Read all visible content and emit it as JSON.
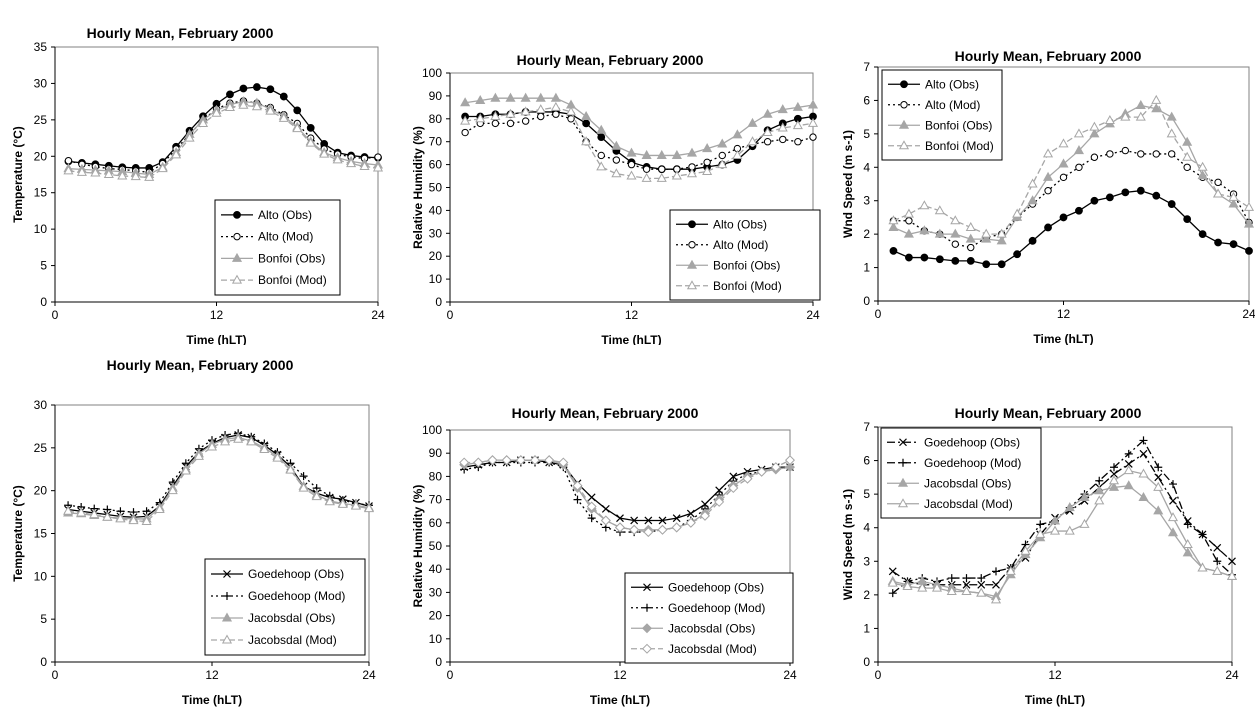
{
  "chart_data": [
    {
      "type": "line",
      "title": "Hourly Mean, February 2000",
      "xlabel": "Time (hLT)",
      "ylabel": "Temperature (°C)",
      "xlim": [
        0,
        24
      ],
      "xticks": [
        0,
        12,
        24
      ],
      "ylim": [
        0,
        35
      ],
      "yticks": [
        0,
        5,
        10,
        15,
        20,
        25,
        30,
        35
      ],
      "legend": "bottom-right",
      "x": [
        1,
        2,
        3,
        4,
        5,
        6,
        7,
        8,
        9,
        10,
        11,
        12,
        13,
        14,
        15,
        16,
        17,
        18,
        19,
        20,
        21,
        22,
        23,
        24
      ],
      "series": [
        {
          "name": "Alto (Obs)",
          "color": "#000000",
          "marker": "filled-circle",
          "dash": "solid",
          "values": [
            19.3,
            19.1,
            18.9,
            18.7,
            18.5,
            18.4,
            18.4,
            19.2,
            21.3,
            23.5,
            25.5,
            27.2,
            28.5,
            29.3,
            29.5,
            29.2,
            28.2,
            26.3,
            23.9,
            21.7,
            20.5,
            20.1,
            19.9,
            19.8
          ]
        },
        {
          "name": "Alto (Mod)",
          "color": "#000000",
          "marker": "open-circle",
          "dash": "dotted",
          "values": [
            19.4,
            18.9,
            18.6,
            18.3,
            18.2,
            18.0,
            17.8,
            19.0,
            21.0,
            23.0,
            25.0,
            26.5,
            27.3,
            27.6,
            27.3,
            26.7,
            25.7,
            24.5,
            22.5,
            21.0,
            20.3,
            19.9,
            19.7,
            19.9
          ]
        },
        {
          "name": "Bonfoi (Obs)",
          "color": "#a6a6a6",
          "marker": "filled-triangle",
          "dash": "solid",
          "values": [
            18.3,
            18.2,
            18.1,
            18.0,
            17.9,
            17.7,
            17.5,
            18.5,
            20.5,
            23.0,
            25.0,
            26.3,
            27.1,
            27.5,
            27.3,
            26.5,
            25.5,
            24.0,
            22.0,
            20.5,
            19.8,
            19.3,
            19.0,
            18.8
          ]
        },
        {
          "name": "Bonfoi (Mod)",
          "color": "#a6a6a6",
          "marker": "open-triangle",
          "dash": "dashed",
          "values": [
            18.0,
            17.8,
            17.7,
            17.5,
            17.3,
            17.2,
            17.1,
            18.3,
            20.2,
            22.5,
            24.5,
            25.9,
            26.7,
            27.0,
            26.8,
            26.2,
            25.2,
            23.8,
            21.8,
            20.3,
            19.5,
            19.0,
            18.6,
            18.4
          ]
        }
      ]
    },
    {
      "type": "line",
      "title": "Hourly Mean, February 2000",
      "xlabel": "Time (hLT)",
      "ylabel": "Relative Humidity (%)",
      "xlim": [
        0,
        24
      ],
      "xticks": [
        0,
        12,
        24
      ],
      "ylim": [
        0,
        100
      ],
      "yticks": [
        0,
        10,
        20,
        30,
        40,
        50,
        60,
        70,
        80,
        90,
        100
      ],
      "legend": "bottom-right",
      "x": [
        1,
        2,
        3,
        4,
        5,
        6,
        7,
        8,
        9,
        10,
        11,
        12,
        13,
        14,
        15,
        16,
        17,
        18,
        19,
        20,
        21,
        22,
        23,
        24
      ],
      "series": [
        {
          "name": "Alto (Obs)",
          "color": "#000000",
          "marker": "filled-circle",
          "dash": "solid",
          "values": [
            81,
            81,
            82,
            82,
            83,
            83,
            83,
            82,
            78,
            72,
            66,
            61,
            59,
            58,
            58,
            58,
            59,
            60,
            62,
            68,
            75,
            78,
            80,
            81
          ]
        },
        {
          "name": "Alto (Mod)",
          "color": "#000000",
          "marker": "open-circle",
          "dash": "dotted",
          "values": [
            74,
            78,
            78,
            78,
            79,
            81,
            82,
            80,
            70,
            64,
            62,
            60,
            58,
            58,
            58,
            59,
            61,
            64,
            67,
            69,
            70,
            71,
            70,
            72
          ]
        },
        {
          "name": "Bonfoi (Obs)",
          "color": "#a6a6a6",
          "marker": "filled-triangle",
          "dash": "solid",
          "values": [
            87,
            88,
            89,
            89,
            89,
            89,
            89,
            86,
            81,
            75,
            68,
            65,
            64,
            64,
            64,
            65,
            67,
            69,
            73,
            78,
            82,
            84,
            85,
            86
          ]
        },
        {
          "name": "Bonfoi (Mod)",
          "color": "#a6a6a6",
          "marker": "open-triangle",
          "dash": "dashed",
          "values": [
            79,
            80,
            81,
            82,
            83,
            84,
            85,
            83,
            70,
            59,
            56,
            55,
            54,
            54,
            55,
            56,
            57,
            60,
            64,
            70,
            74,
            76,
            77,
            78
          ]
        }
      ]
    },
    {
      "type": "line",
      "title": "Hourly Mean, February 2000",
      "xlabel": "Time (hLT)",
      "ylabel": "Wnd Speed (m s-1)",
      "xlim": [
        0,
        24
      ],
      "xticks": [
        0,
        12,
        24
      ],
      "ylim": [
        0,
        7
      ],
      "yticks": [
        0,
        1,
        2,
        3,
        4,
        5,
        6,
        7
      ],
      "legend": "top-left",
      "x": [
        1,
        2,
        3,
        4,
        5,
        6,
        7,
        8,
        9,
        10,
        11,
        12,
        13,
        14,
        15,
        16,
        17,
        18,
        19,
        20,
        21,
        22,
        23,
        24
      ],
      "series": [
        {
          "name": "Alto (Obs)",
          "color": "#000000",
          "marker": "filled-circle",
          "dash": "solid",
          "values": [
            1.5,
            1.3,
            1.3,
            1.25,
            1.2,
            1.2,
            1.1,
            1.1,
            1.4,
            1.8,
            2.2,
            2.5,
            2.7,
            3.0,
            3.1,
            3.25,
            3.3,
            3.15,
            2.9,
            2.45,
            2.0,
            1.75,
            1.7,
            1.5
          ]
        },
        {
          "name": "Alto (Mod)",
          "color": "#000000",
          "marker": "open-circle",
          "dash": "dotted",
          "values": [
            2.4,
            2.4,
            2.1,
            2.0,
            1.7,
            1.6,
            1.9,
            2.0,
            2.5,
            2.9,
            3.3,
            3.7,
            4.0,
            4.3,
            4.4,
            4.5,
            4.4,
            4.4,
            4.4,
            4.0,
            3.7,
            3.55,
            3.2,
            2.35
          ]
        },
        {
          "name": "Bonfoi (Obs)",
          "color": "#a6a6a6",
          "marker": "filled-triangle",
          "dash": "solid",
          "values": [
            2.2,
            2.0,
            2.1,
            2.0,
            2.0,
            1.85,
            1.85,
            1.8,
            2.5,
            3.0,
            3.7,
            4.1,
            4.5,
            5.0,
            5.3,
            5.6,
            5.85,
            5.75,
            5.5,
            4.75,
            3.75,
            3.2,
            2.9,
            2.3
          ]
        },
        {
          "name": "Bonfoi (Mod)",
          "color": "#a6a6a6",
          "marker": "open-triangle",
          "dash": "dashed",
          "values": [
            2.4,
            2.6,
            2.85,
            2.7,
            2.4,
            2.2,
            2.0,
            2.0,
            2.6,
            3.5,
            4.4,
            4.7,
            5.0,
            5.2,
            5.4,
            5.5,
            5.5,
            6.0,
            5.0,
            4.3,
            4.0,
            3.2,
            3.1,
            2.8
          ]
        }
      ]
    },
    {
      "type": "line",
      "title": "Hourly Mean, February 2000",
      "xlabel": "Time (hLT)",
      "ylabel": "Temperature (°C)",
      "xlim": [
        0,
        24
      ],
      "xticks": [
        0,
        12,
        24
      ],
      "ylim": [
        0,
        30
      ],
      "yticks": [
        0,
        5,
        10,
        15,
        20,
        25,
        30
      ],
      "legend": "bottom-right",
      "x": [
        1,
        2,
        3,
        4,
        5,
        6,
        7,
        8,
        9,
        10,
        11,
        12,
        13,
        14,
        15,
        16,
        17,
        18,
        19,
        20,
        21,
        22,
        23,
        24
      ],
      "series": [
        {
          "name": "Goedehoop (Obs)",
          "color": "#000000",
          "marker": "x",
          "dash": "solid",
          "values": [
            17.8,
            17.6,
            17.4,
            17.2,
            17.0,
            16.9,
            17.0,
            18.2,
            20.5,
            22.8,
            24.5,
            25.5,
            26.2,
            26.5,
            26.2,
            25.3,
            24.2,
            22.8,
            20.5,
            19.7,
            19.2,
            19.0,
            18.6,
            18.2
          ]
        },
        {
          "name": "Goedehoop (Mod)",
          "color": "#000000",
          "marker": "plus",
          "dash": "dotted",
          "values": [
            18.3,
            18.1,
            17.9,
            17.8,
            17.6,
            17.5,
            17.6,
            18.6,
            21.0,
            23.2,
            24.9,
            25.9,
            26.5,
            26.7,
            26.3,
            25.5,
            24.5,
            23.2,
            21.7,
            20.3,
            19.4,
            18.9,
            18.5,
            18.3
          ]
        },
        {
          "name": "Jacobsdal (Obs)",
          "color": "#a6a6a6",
          "marker": "filled-triangle",
          "dash": "solid",
          "values": [
            17.4,
            17.3,
            17.1,
            16.9,
            16.8,
            16.7,
            16.7,
            18.0,
            20.3,
            22.5,
            24.3,
            25.4,
            26.0,
            26.2,
            25.8,
            25.0,
            24.0,
            22.5,
            20.5,
            19.5,
            18.8,
            18.5,
            18.3,
            18.0
          ]
        },
        {
          "name": "Jacobsdal (Mod)",
          "color": "#a6a6a6",
          "marker": "open-triangle",
          "dash": "dashed",
          "values": [
            17.6,
            17.4,
            17.2,
            16.9,
            16.7,
            16.5,
            16.4,
            17.8,
            20.0,
            22.3,
            24.0,
            25.1,
            25.7,
            26.0,
            25.7,
            24.8,
            23.8,
            22.4,
            20.3,
            19.3,
            18.7,
            18.4,
            18.2,
            17.9
          ]
        }
      ]
    },
    {
      "type": "line",
      "title": "Hourly Mean, February 2000",
      "xlabel": "Time (hLT)",
      "ylabel": "Relative Humidity (%)",
      "xlim": [
        0,
        24
      ],
      "xticks": [
        0,
        12,
        24
      ],
      "ylim": [
        0,
        100
      ],
      "yticks": [
        0,
        10,
        20,
        30,
        40,
        50,
        60,
        70,
        80,
        90,
        100
      ],
      "legend": "bottom-right",
      "x": [
        1,
        2,
        3,
        4,
        5,
        6,
        7,
        8,
        9,
        10,
        11,
        12,
        13,
        14,
        15,
        16,
        17,
        18,
        19,
        20,
        21,
        22,
        23,
        24
      ],
      "series": [
        {
          "name": "Goedehoop (Obs)",
          "color": "#000000",
          "marker": "x",
          "dash": "solid",
          "values": [
            84,
            85,
            86,
            86,
            87,
            87,
            86,
            85,
            77,
            71,
            66,
            62,
            61,
            61,
            61,
            62,
            64,
            68,
            74,
            80,
            82,
            83,
            84,
            84
          ]
        },
        {
          "name": "Goedehoop (Mod)",
          "color": "#000000",
          "marker": "plus",
          "dash": "dotted",
          "values": [
            83,
            84,
            86,
            86,
            86,
            86,
            86,
            84,
            70,
            62,
            58,
            56,
            56,
            56,
            57,
            58,
            61,
            66,
            72,
            78,
            81,
            82,
            83,
            84
          ]
        },
        {
          "name": "Jacobsdal (Obs)",
          "color": "#a6a6a6",
          "marker": "filled-diamond",
          "dash": "solid",
          "values": [
            85,
            86,
            87,
            87,
            87,
            87,
            87,
            85,
            75,
            66,
            61,
            58,
            57,
            57,
            57,
            58,
            60,
            64,
            70,
            76,
            80,
            82,
            83,
            84
          ]
        },
        {
          "name": "Jacobsdal (Mod)",
          "color": "#a6a6a6",
          "marker": "open-diamond",
          "dash": "dashed",
          "values": [
            86,
            86,
            87,
            87,
            87,
            87,
            87,
            86,
            76,
            67,
            61,
            58,
            57,
            56,
            57,
            58,
            60,
            63,
            69,
            75,
            79,
            82,
            84,
            87
          ]
        }
      ]
    },
    {
      "type": "line",
      "title": "Hourly Mean, February 2000",
      "xlabel": "Time (hLT)",
      "ylabel": "Wind Speed (m s-1)",
      "xlim": [
        0,
        24
      ],
      "xticks": [
        0,
        12,
        24
      ],
      "ylim": [
        0,
        7
      ],
      "yticks": [
        0,
        1,
        2,
        3,
        4,
        5,
        6,
        7
      ],
      "legend": "top-left",
      "x": [
        1,
        2,
        3,
        4,
        5,
        6,
        7,
        8,
        9,
        10,
        11,
        12,
        13,
        14,
        15,
        16,
        17,
        18,
        19,
        20,
        21,
        22,
        23,
        24
      ],
      "series": [
        {
          "name": "Goedehoop (Obs)",
          "color": "#000000",
          "marker": "x",
          "dash": "dashdot",
          "values": [
            2.7,
            2.4,
            2.3,
            2.3,
            2.3,
            2.3,
            2.3,
            2.3,
            2.8,
            3.1,
            3.8,
            4.3,
            4.5,
            4.8,
            5.2,
            5.6,
            5.9,
            6.2,
            5.5,
            4.8,
            4.2,
            3.8,
            3.4,
            3.0
          ]
        },
        {
          "name": "Goedehoop (Mod)",
          "color": "#000000",
          "marker": "plus",
          "dash": "dashdot",
          "values": [
            2.05,
            2.4,
            2.5,
            2.4,
            2.5,
            2.5,
            2.5,
            2.7,
            2.8,
            3.5,
            4.1,
            4.2,
            4.6,
            5.0,
            5.4,
            5.8,
            6.2,
            6.6,
            5.8,
            5.3,
            4.1,
            3.8,
            3.0,
            2.6
          ]
        },
        {
          "name": "Jacobsdal (Obs)",
          "color": "#a6a6a6",
          "marker": "filled-triangle",
          "dash": "solid",
          "values": [
            2.4,
            2.3,
            2.4,
            2.3,
            2.2,
            2.1,
            2.05,
            1.95,
            2.6,
            3.2,
            3.7,
            4.2,
            4.6,
            4.9,
            5.1,
            5.2,
            5.25,
            4.9,
            4.5,
            3.85,
            3.25,
            2.8,
            2.7,
            2.55
          ]
        },
        {
          "name": "Jacobsdal (Mod)",
          "color": "#a6a6a6",
          "marker": "open-triangle",
          "dash": "solid",
          "values": [
            2.35,
            2.25,
            2.2,
            2.2,
            2.1,
            2.1,
            2.05,
            1.85,
            2.7,
            3.3,
            3.8,
            3.9,
            3.9,
            4.1,
            4.8,
            5.4,
            5.7,
            5.6,
            5.2,
            4.3,
            3.5,
            2.8,
            2.7,
            2.55
          ]
        }
      ]
    }
  ]
}
